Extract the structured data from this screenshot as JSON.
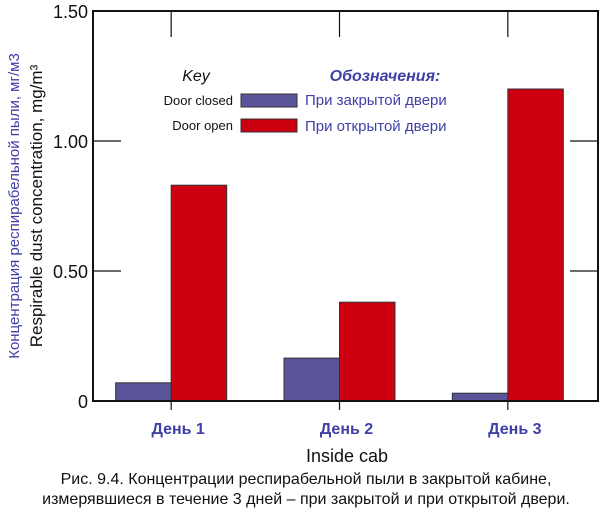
{
  "chart_data": {
    "type": "bar",
    "categories": [
      "День 1",
      "День 2",
      "День 3"
    ],
    "series": [
      {
        "name": "Door closed",
        "name_ru": "При закрытой двери",
        "color": "#5a5499",
        "values": [
          0.07,
          0.165,
          0.03
        ]
      },
      {
        "name": "Door open",
        "name_ru": "При открытой двери",
        "color": "#cc0011",
        "values": [
          0.83,
          0.38,
          1.2
        ]
      }
    ],
    "xlabel": "Inside cab",
    "ylabel": "Respirable dust concentration, mg/m³",
    "ylabel_ru": "Концентрация респирабельной пыли, мг/м3",
    "ylim": [
      0,
      1.5
    ],
    "yticks": [
      0,
      0.5,
      1.0,
      1.5
    ],
    "ytick_labels": [
      "0",
      "0.50",
      "1.00",
      "1.50"
    ],
    "legend": {
      "title": "Key",
      "title_ru": "Обозначения:",
      "placement": "top-left"
    },
    "grid": false
  },
  "caption": {
    "line1": "Рис. 9.4. Концентрации респирабельной пыли в закрытой кабине,",
    "line2": "измерявшиеся в течение 3 дней – при закрытой и при открытой двери."
  },
  "colors": {
    "russian_text": "#3f3fa6",
    "axis": "#111111"
  }
}
